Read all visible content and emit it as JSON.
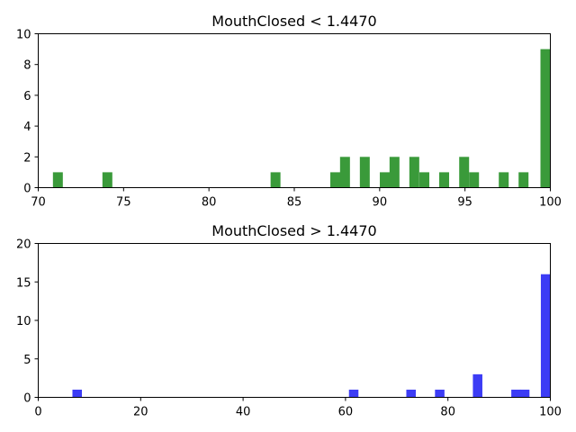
{
  "chart_data": [
    {
      "type": "bar",
      "title": "MouthClosed < 1.4470",
      "xlabel": "",
      "ylabel": "",
      "xlim": [
        70,
        100
      ],
      "ylim": [
        0,
        10
      ],
      "xticks": [
        "70",
        "75",
        "80",
        "85",
        "90",
        "95",
        "100"
      ],
      "yticks": [
        "0",
        "2",
        "4",
        "6",
        "8",
        "10"
      ],
      "bin_width": 0.58,
      "color": "#3a9a3a",
      "bars": [
        {
          "x": 71.15,
          "count": 1
        },
        {
          "x": 74.05,
          "count": 1
        },
        {
          "x": 83.9,
          "count": 1
        },
        {
          "x": 87.4,
          "count": 1
        },
        {
          "x": 87.97,
          "count": 2
        },
        {
          "x": 89.13,
          "count": 2
        },
        {
          "x": 90.3,
          "count": 1
        },
        {
          "x": 90.87,
          "count": 2
        },
        {
          "x": 92.03,
          "count": 2
        },
        {
          "x": 92.62,
          "count": 1
        },
        {
          "x": 93.78,
          "count": 1
        },
        {
          "x": 94.95,
          "count": 2
        },
        {
          "x": 95.53,
          "count": 1
        },
        {
          "x": 97.27,
          "count": 1
        },
        {
          "x": 98.43,
          "count": 1
        },
        {
          "x": 99.71,
          "count": 9
        }
      ]
    },
    {
      "type": "bar",
      "title": "MouthClosed > 1.4470",
      "xlabel": "",
      "ylabel": "",
      "xlim": [
        0,
        100
      ],
      "ylim": [
        0,
        20
      ],
      "xticks": [
        "0",
        "20",
        "40",
        "60",
        "80",
        "100"
      ],
      "yticks": [
        "0",
        "5",
        "10",
        "15",
        "20"
      ],
      "bin_width": 1.85,
      "color": "#3c3cf5",
      "bars": [
        {
          "x": 7.6,
          "count": 1
        },
        {
          "x": 61.6,
          "count": 1
        },
        {
          "x": 72.8,
          "count": 1
        },
        {
          "x": 78.4,
          "count": 1
        },
        {
          "x": 85.8,
          "count": 3
        },
        {
          "x": 93.3,
          "count": 1
        },
        {
          "x": 95.0,
          "count": 1
        },
        {
          "x": 99.07,
          "count": 16
        }
      ]
    }
  ]
}
